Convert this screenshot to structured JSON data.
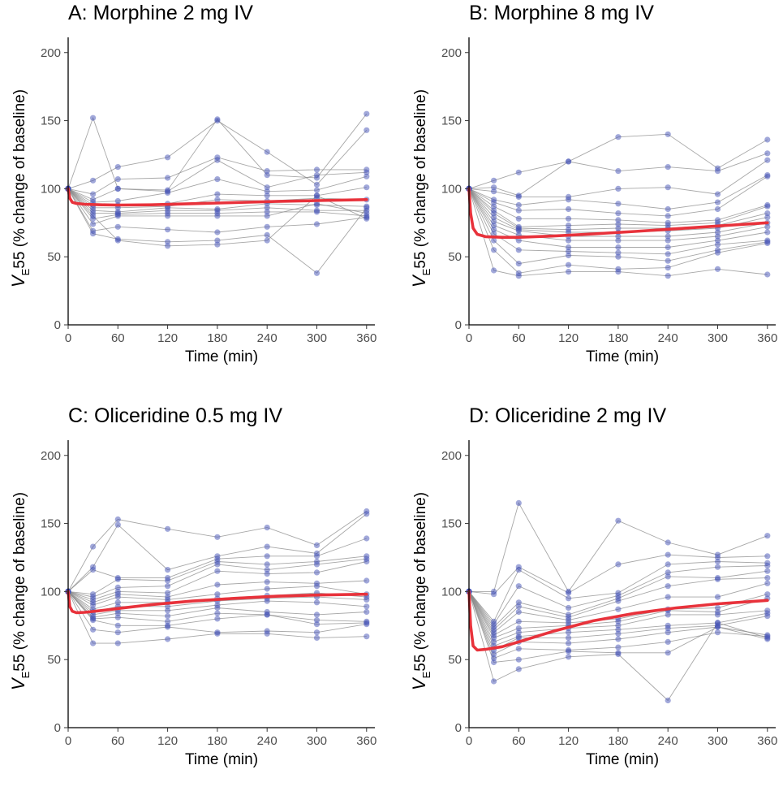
{
  "chart_data": [
    {
      "type": "line",
      "title": "A: Morphine 2 mg IV",
      "xlabel": "Time (min)",
      "ylabel_symbol": "V",
      "ylabel_subscript": "E",
      "ylabel_rest": "55 (% change of baseline)",
      "xlim": [
        0,
        370
      ],
      "ylim": [
        0,
        210
      ],
      "xticks": [
        0,
        60,
        120,
        180,
        240,
        300,
        360
      ],
      "yticks": [
        0,
        50,
        100,
        150,
        200
      ],
      "times": [
        0,
        30,
        60,
        120,
        180,
        240,
        300,
        360
      ],
      "subjects": [
        [
          100,
          152,
          100,
          99,
          151,
          110,
          108,
          155
        ],
        [
          100,
          106,
          116,
          123,
          150,
          127,
          103,
          143
        ],
        [
          100,
          96,
          107,
          108,
          123,
          113,
          114,
          114
        ],
        [
          100,
          92,
          100,
          98,
          121,
          101,
          110,
          112
        ],
        [
          100,
          90,
          91,
          97,
          107,
          98,
          99,
          109
        ],
        [
          100,
          88,
          88,
          89,
          96,
          95,
          95,
          101
        ],
        [
          100,
          86,
          86,
          87,
          92,
          91,
          93,
          92
        ],
        [
          100,
          84,
          83,
          86,
          85,
          89,
          88,
          87
        ],
        [
          100,
          82,
          82,
          84,
          84,
          86,
          84,
          84
        ],
        [
          100,
          78,
          81,
          82,
          82,
          83,
          83,
          80
        ],
        [
          100,
          74,
          80,
          80,
          80,
          80,
          89,
          82
        ],
        [
          100,
          69,
          72,
          70,
          68,
          72,
          74,
          79
        ],
        [
          100,
          67,
          63,
          61,
          62,
          66,
          38,
          86
        ],
        [
          100,
          80,
          62,
          58,
          59,
          62,
          95,
          78
        ]
      ],
      "model_curve": {
        "t": [
          0,
          2,
          5,
          10,
          20,
          40,
          60,
          100,
          150,
          200,
          250,
          300,
          360
        ],
        "y": [
          100,
          93,
          90,
          89.2,
          88.6,
          88.2,
          88,
          88.2,
          89,
          89.8,
          90.6,
          91.3,
          92
        ]
      }
    },
    {
      "type": "line",
      "title": "B: Morphine 8 mg IV",
      "xlabel": "Time (min)",
      "ylabel_symbol": "V",
      "ylabel_subscript": "E",
      "ylabel_rest": "55 (% change of baseline)",
      "xlim": [
        0,
        370
      ],
      "ylim": [
        0,
        210
      ],
      "xticks": [
        0,
        60,
        120,
        180,
        240,
        300,
        360
      ],
      "yticks": [
        0,
        50,
        100,
        150,
        200
      ],
      "times": [
        0,
        30,
        60,
        120,
        180,
        240,
        300,
        360
      ],
      "subjects": [
        [
          100,
          106,
          112,
          120,
          138,
          140,
          115,
          136
        ],
        [
          100,
          101,
          95,
          120,
          113,
          116,
          113,
          126
        ],
        [
          100,
          98,
          94,
          94,
          100,
          101,
          96,
          121
        ],
        [
          100,
          92,
          88,
          92,
          89,
          85,
          90,
          110
        ],
        [
          100,
          90,
          84,
          85,
          82,
          80,
          85,
          109
        ],
        [
          100,
          87,
          78,
          78,
          77,
          75,
          77,
          88
        ],
        [
          100,
          84,
          72,
          73,
          74,
          73,
          75,
          87
        ],
        [
          100,
          82,
          71,
          70,
          71,
          71,
          73,
          82
        ],
        [
          100,
          79,
          70,
          68,
          68,
          69,
          71,
          79
        ],
        [
          100,
          76,
          69,
          65,
          65,
          65,
          68,
          75
        ],
        [
          100,
          73,
          66,
          62,
          62,
          62,
          65,
          72
        ],
        [
          100,
          70,
          62,
          57,
          57,
          57,
          62,
          68
        ],
        [
          100,
          67,
          55,
          54,
          53,
          52,
          59,
          62
        ],
        [
          100,
          62,
          45,
          51,
          50,
          47,
          55,
          61
        ],
        [
          100,
          55,
          38,
          44,
          41,
          42,
          53,
          60
        ],
        [
          100,
          40,
          36,
          39,
          39,
          36,
          41,
          37
        ]
      ],
      "model_curve": {
        "t": [
          0,
          2,
          5,
          10,
          20,
          40,
          60,
          100,
          150,
          200,
          250,
          300,
          360
        ],
        "y": [
          100,
          82,
          71,
          66.5,
          64.8,
          64.3,
          64.3,
          65.2,
          66.8,
          68.6,
          70.6,
          72.6,
          75
        ]
      }
    },
    {
      "type": "line",
      "title": "C: Oliceridine 0.5 mg IV",
      "xlabel": "Time (min)",
      "ylabel_symbol": "V",
      "ylabel_subscript": "E",
      "ylabel_rest": "55 (% change of baseline)",
      "xlim": [
        0,
        370
      ],
      "ylim": [
        0,
        210
      ],
      "xticks": [
        0,
        60,
        120,
        180,
        240,
        300,
        360
      ],
      "yticks": [
        0,
        50,
        100,
        150,
        200
      ],
      "times": [
        0,
        30,
        60,
        120,
        180,
        240,
        300,
        360
      ],
      "subjects": [
        [
          100,
          133,
          153,
          146,
          140,
          147,
          134,
          159
        ],
        [
          100,
          118,
          149,
          116,
          126,
          133,
          128,
          157
        ],
        [
          100,
          116,
          110,
          110,
          124,
          126,
          126,
          139
        ],
        [
          100,
          98,
          109,
          108,
          122,
          120,
          122,
          126
        ],
        [
          100,
          96,
          103,
          104,
          120,
          116,
          120,
          124
        ],
        [
          100,
          94,
          100,
          99,
          115,
          113,
          114,
          122
        ],
        [
          100,
          92,
          98,
          96,
          105,
          107,
          106,
          108
        ],
        [
          100,
          90,
          96,
          94,
          98,
          102,
          104,
          98
        ],
        [
          100,
          87,
          92,
          92,
          95,
          97,
          99,
          96
        ],
        [
          100,
          85,
          89,
          89,
          93,
          95,
          96,
          94
        ],
        [
          100,
          83,
          86,
          86,
          90,
          93,
          92,
          89
        ],
        [
          100,
          81,
          84,
          82,
          88,
          85,
          83,
          85
        ],
        [
          100,
          80,
          81,
          78,
          84,
          83,
          79,
          78
        ],
        [
          100,
          79,
          75,
          75,
          80,
          83,
          76,
          77
        ],
        [
          100,
          72,
          70,
          74,
          70,
          71,
          70,
          76
        ],
        [
          100,
          62,
          62,
          65,
          69,
          69,
          66,
          67
        ]
      ],
      "model_curve": {
        "t": [
          0,
          2,
          5,
          10,
          20,
          40,
          60,
          100,
          150,
          200,
          250,
          300,
          360
        ],
        "y": [
          100,
          89,
          85.5,
          84.5,
          84.7,
          86,
          87.5,
          90.3,
          93,
          95,
          96.5,
          97.4,
          98
        ]
      }
    },
    {
      "type": "line",
      "title": "D: Oliceridine 2 mg IV",
      "xlabel": "Time (min)",
      "ylabel_symbol": "V",
      "ylabel_subscript": "E",
      "ylabel_rest": "55 (% change of baseline)",
      "xlim": [
        0,
        370
      ],
      "ylim": [
        0,
        210
      ],
      "xticks": [
        0,
        60,
        120,
        180,
        240,
        300,
        360
      ],
      "yticks": [
        0,
        50,
        100,
        150,
        200
      ],
      "times": [
        0,
        30,
        60,
        120,
        180,
        240,
        300,
        360
      ],
      "subjects": [
        [
          100,
          100,
          165,
          100,
          152,
          136,
          127,
          141
        ],
        [
          100,
          98,
          118,
          99,
          120,
          127,
          125,
          126
        ],
        [
          100,
          78,
          116,
          95,
          99,
          120,
          122,
          121
        ],
        [
          100,
          76,
          104,
          88,
          97,
          114,
          118,
          119
        ],
        [
          100,
          74,
          92,
          83,
          95,
          111,
          110,
          115
        ],
        [
          100,
          72,
          89,
          81,
          93,
          104,
          109,
          110
        ],
        [
          100,
          70,
          85,
          79,
          87,
          96,
          96,
          106
        ],
        [
          100,
          68,
          78,
          77,
          80,
          87,
          88,
          98
        ],
        [
          100,
          66,
          73,
          75,
          78,
          86,
          85,
          95
        ],
        [
          100,
          63,
          70,
          73,
          75,
          83,
          83,
          86
        ],
        [
          100,
          60,
          67,
          70,
          72,
          75,
          77,
          84
        ],
        [
          100,
          57,
          66,
          66,
          69,
          73,
          75,
          82
        ],
        [
          100,
          54,
          63,
          62,
          65,
          70,
          74,
          68
        ],
        [
          100,
          51,
          58,
          57,
          59,
          63,
          70,
          67
        ],
        [
          100,
          48,
          50,
          56,
          55,
          55,
          74,
          65
        ],
        [
          100,
          34,
          43,
          52,
          54,
          20,
          77,
          66
        ]
      ],
      "model_curve": {
        "t": [
          0,
          2,
          5,
          10,
          20,
          40,
          60,
          100,
          150,
          200,
          250,
          300,
          360
        ],
        "y": [
          100,
          75,
          60,
          57,
          57.5,
          59.5,
          63,
          70.5,
          78.5,
          84,
          88,
          91,
          93.5
        ]
      }
    }
  ]
}
